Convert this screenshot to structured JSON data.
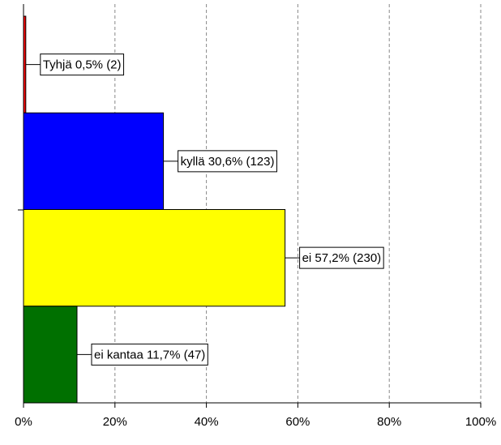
{
  "chart_data": {
    "type": "bar",
    "orientation": "horizontal",
    "values": [
      0.5,
      30.6,
      57.2,
      11.7
    ],
    "value_labels": [
      "Tyhjä 0,5% (2)",
      "kyllä 30,6% (123)",
      "ei 57,2% (230)",
      "ei kantaa 11,7% (47)"
    ],
    "colors": [
      "#ff0000",
      "#0000ff",
      "#ffff00",
      "#007000"
    ],
    "xlim": [
      0,
      100
    ],
    "xticks": [
      {
        "value": 0,
        "label": "0%"
      },
      {
        "value": 20,
        "label": "20%"
      },
      {
        "value": 40,
        "label": "40%"
      },
      {
        "value": 60,
        "label": "60%"
      },
      {
        "value": 80,
        "label": "80%"
      },
      {
        "value": 100,
        "label": "100%"
      }
    ],
    "grid": true
  }
}
